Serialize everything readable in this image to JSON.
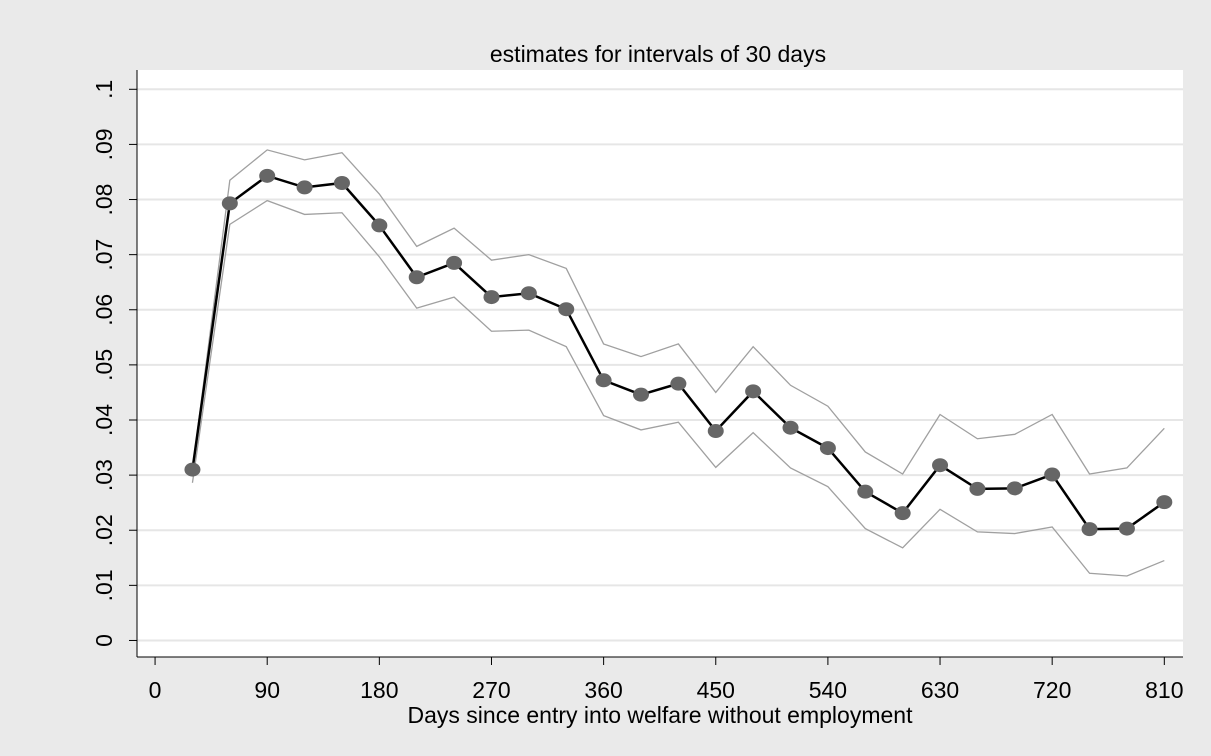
{
  "chart_data": {
    "type": "line",
    "title": "estimates for intervals of 30 days",
    "x_label": "Days since entry into welfare without employment",
    "x": [
      30,
      60,
      90,
      120,
      150,
      180,
      210,
      240,
      270,
      300,
      330,
      360,
      390,
      420,
      450,
      480,
      510,
      540,
      570,
      600,
      630,
      660,
      690,
      720,
      750,
      780,
      810
    ],
    "values": [
      0.031,
      0.0793,
      0.0843,
      0.0822,
      0.083,
      0.0753,
      0.0659,
      0.0685,
      0.0623,
      0.063,
      0.0601,
      0.0472,
      0.0446,
      0.0466,
      0.038,
      0.0452,
      0.0386,
      0.0349,
      0.027,
      0.0231,
      0.0318,
      0.0275,
      0.0276,
      0.0301,
      0.0202,
      0.0203,
      0.0251
    ],
    "ci_upper": [
      0.031,
      0.0835,
      0.089,
      0.0872,
      0.0885,
      0.081,
      0.0715,
      0.0748,
      0.069,
      0.07,
      0.0675,
      0.0538,
      0.0515,
      0.0538,
      0.045,
      0.0533,
      0.0463,
      0.0425,
      0.0342,
      0.0302,
      0.041,
      0.0366,
      0.0374,
      0.041,
      0.0302,
      0.0313,
      0.0385
    ],
    "ci_lower": [
      0.0286,
      0.0755,
      0.0798,
      0.0773,
      0.0776,
      0.0696,
      0.0603,
      0.0623,
      0.0561,
      0.0563,
      0.0533,
      0.0408,
      0.0382,
      0.0396,
      0.0314,
      0.0377,
      0.0313,
      0.0279,
      0.0203,
      0.0168,
      0.0238,
      0.0197,
      0.0194,
      0.0206,
      0.0122,
      0.0117,
      0.0145
    ],
    "line_color": "#000000",
    "marker_color": "#666666",
    "ci_color": "#a0a0a0",
    "xlim": [
      -14.5,
      825
    ],
    "ylim": [
      -0.003,
      0.1035
    ],
    "xticks": [
      0,
      90,
      180,
      270,
      360,
      450,
      540,
      630,
      720,
      810
    ],
    "yticks": [
      0,
      {
        "value": 0.01,
        "label": ".01"
      },
      {
        "value": 0.02,
        "label": ".02"
      },
      {
        "value": 0.03,
        "label": ".03"
      },
      {
        "value": 0.04,
        "label": ".04"
      },
      {
        "value": 0.05,
        "label": ".05"
      },
      {
        "value": 0.06,
        "label": ".06"
      },
      {
        "value": 0.07,
        "label": ".07"
      },
      {
        "value": 0.08,
        "label": ".08"
      },
      {
        "value": 0.09,
        "label": ".09"
      },
      {
        "value": 0.1,
        "label": ".1"
      }
    ],
    "grid": true
  }
}
